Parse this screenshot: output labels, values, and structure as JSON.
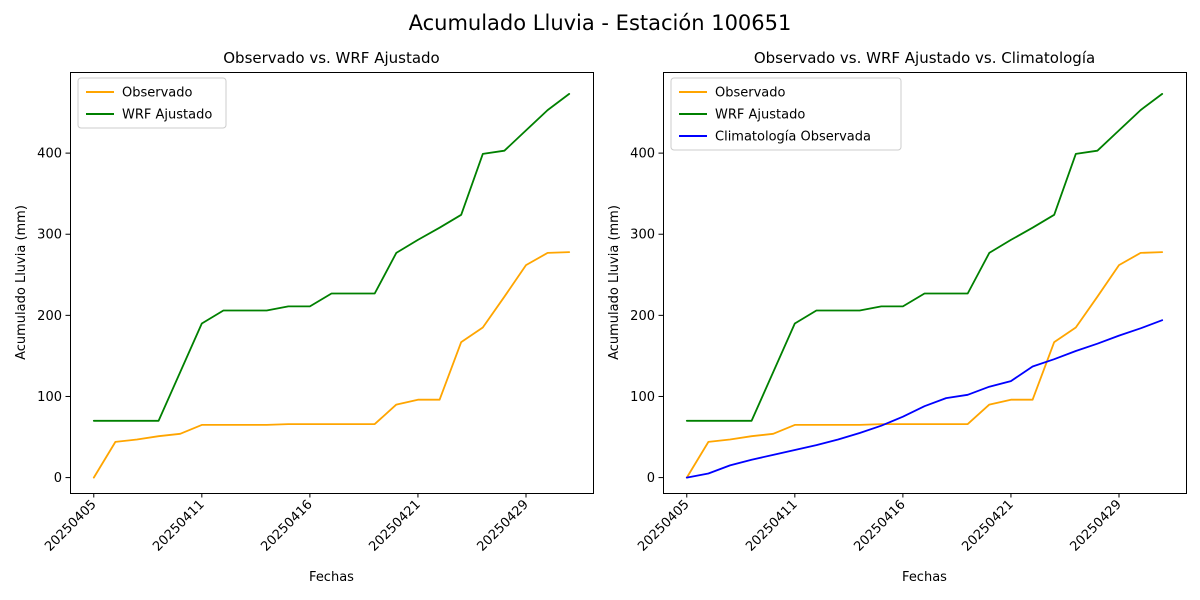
{
  "figure": {
    "suptitle": "Acumulado Lluvia - Estación 100651",
    "background": "#ffffff",
    "text_color": "#000000"
  },
  "chart_data": [
    {
      "type": "line",
      "title": "Observado vs. WRF Ajustado",
      "xlabel": "Fechas",
      "ylabel": "Acumulado Lluvia (mm)",
      "grid": false,
      "legend_position": "upper left",
      "xlim": [
        -1.1,
        23.1
      ],
      "ylim": [
        -19,
        500
      ],
      "y_ticks": [
        0,
        100,
        200,
        300,
        400
      ],
      "x_tick_positions": [
        0,
        5,
        10,
        15,
        20
      ],
      "x_tick_labels": [
        "20250405",
        "20250411",
        "20250416",
        "20250421",
        "20250429"
      ],
      "x_tick_rotation_deg": 45,
      "x": [
        0,
        1,
        2,
        3,
        4,
        5,
        6,
        7,
        8,
        9,
        10,
        11,
        12,
        13,
        14,
        15,
        16,
        17,
        18,
        19,
        20,
        21,
        22
      ],
      "series": [
        {
          "name": "Observado",
          "color": "#FFA500",
          "values": [
            0,
            44,
            47,
            51,
            54,
            65,
            65,
            65,
            65,
            66,
            66,
            66,
            66,
            66,
            90,
            96,
            96,
            167,
            185,
            223,
            262,
            277,
            278
          ]
        },
        {
          "name": "WRF Ajustado",
          "color": "#008000",
          "values": [
            70,
            70,
            70,
            70,
            130,
            190,
            206,
            206,
            206,
            211,
            211,
            227,
            227,
            227,
            277,
            293,
            308,
            324,
            399,
            403,
            428,
            453,
            473
          ]
        }
      ]
    },
    {
      "type": "line",
      "title": "Observado vs. WRF Ajustado vs. Climatología",
      "xlabel": "Fechas",
      "ylabel": "Acumulado Lluvia (mm)",
      "grid": false,
      "legend_position": "upper left",
      "xlim": [
        -1.1,
        23.1
      ],
      "ylim": [
        -19,
        500
      ],
      "y_ticks": [
        0,
        100,
        200,
        300,
        400
      ],
      "x_tick_positions": [
        0,
        5,
        10,
        15,
        20
      ],
      "x_tick_labels": [
        "20250405",
        "20250411",
        "20250416",
        "20250421",
        "20250429"
      ],
      "x_tick_rotation_deg": 45,
      "x": [
        0,
        1,
        2,
        3,
        4,
        5,
        6,
        7,
        8,
        9,
        10,
        11,
        12,
        13,
        14,
        15,
        16,
        17,
        18,
        19,
        20,
        21,
        22
      ],
      "series": [
        {
          "name": "Observado",
          "color": "#FFA500",
          "values": [
            0,
            44,
            47,
            51,
            54,
            65,
            65,
            65,
            65,
            66,
            66,
            66,
            66,
            66,
            90,
            96,
            96,
            167,
            185,
            223,
            262,
            277,
            278
          ]
        },
        {
          "name": "WRF Ajustado",
          "color": "#008000",
          "values": [
            70,
            70,
            70,
            70,
            130,
            190,
            206,
            206,
            206,
            211,
            211,
            227,
            227,
            227,
            277,
            293,
            308,
            324,
            399,
            403,
            428,
            453,
            473
          ]
        },
        {
          "name": "Climatología Observada",
          "color": "#0000FF",
          "values": [
            0,
            5,
            15,
            22,
            28,
            34,
            40,
            47,
            55,
            64,
            75,
            88,
            98,
            102,
            112,
            119,
            137,
            146,
            156,
            165,
            175,
            184,
            194
          ]
        }
      ]
    }
  ]
}
